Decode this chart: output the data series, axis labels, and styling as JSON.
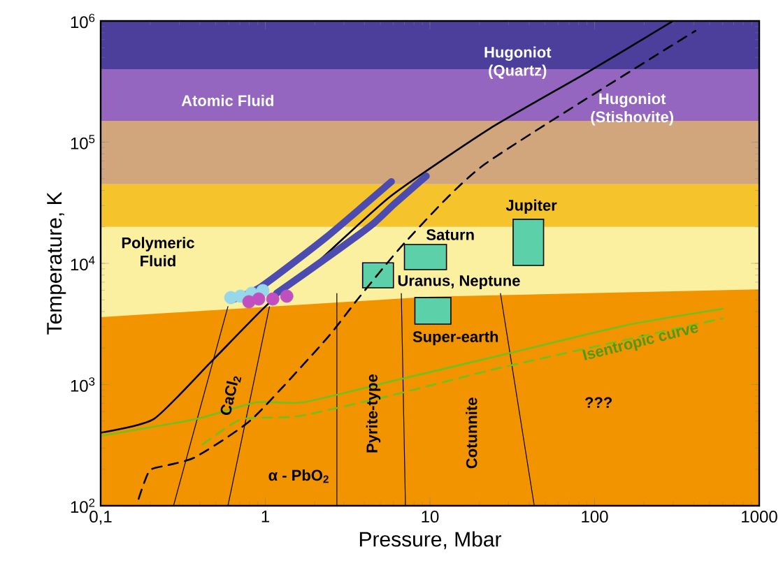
{
  "chart_data": {
    "type": "line",
    "xlabel": "Pressure, Mbar",
    "ylabel": "Temperature, K",
    "log": "xy",
    "grid": false,
    "xlim": [
      0.1,
      1000
    ],
    "ylim": [
      100,
      1000000
    ],
    "xticks": [
      {
        "value": 0.1,
        "label": "0,1"
      },
      1,
      10,
      100,
      1000
    ],
    "yticks": [
      {
        "value": 100,
        "label": "10$^{2}$"
      },
      {
        "value": 1000,
        "label": "10$^{3}$"
      },
      {
        "value": 10000,
        "label": "10$^{4}$"
      },
      {
        "value": 100000,
        "label": "10$^{5}$"
      },
      {
        "value": 1000000,
        "label": "10$^{6}$"
      }
    ],
    "bands": [
      {
        "axis": "y",
        "from": 3000,
        "to": 20000,
        "color": "#fbefa0"
      },
      {
        "axis": "y",
        "from": 20000,
        "to": 45000,
        "color": "#f5c42c"
      },
      {
        "axis": "y",
        "from": 45000,
        "to": 150000,
        "color": "#d2a67c"
      },
      {
        "axis": "y",
        "from": 150000,
        "to": 400000,
        "color": "#9466c0"
      },
      {
        "axis": "y",
        "from": 400000,
        "to": 1000000,
        "color": "#4c3f9c"
      }
    ],
    "series": [
      {
        "type": "area",
        "color": "#f29400",
        "x": [
          0.1,
          10,
          1000
        ],
        "values": [
          3600,
          5300,
          6100
        ]
      },
      {
        "color": "#000000",
        "x": [
          0.277,
          0.593
        ],
        "values": [
          100,
          4400
        ]
      },
      {
        "color": "#000000",
        "x": [
          0.593,
          1.06
        ],
        "values": [
          100,
          4400
        ]
      },
      {
        "color": "#000000",
        "x": [
          2.72,
          2.72
        ],
        "values": [
          100,
          5650
        ]
      },
      {
        "color": "#000000",
        "x": [
          7.1,
          6.7
        ],
        "values": [
          100,
          5650
        ]
      },
      {
        "color": "#000000",
        "x": [
          43,
          26.8
        ],
        "values": [
          100,
          5650
        ]
      },
      {
        "type": "area",
        "color": "#5cd0a8",
        "x": [
          7.0,
          12.6,
          12.6,
          7.0
        ],
        "values": [
          8870,
          8870,
          14300,
          14300
        ]
      },
      {
        "type": "area",
        "color": "#5cd0a8",
        "x": [
          32,
          49,
          49,
          32
        ],
        "values": [
          9600,
          9600,
          23100,
          23100
        ]
      },
      {
        "type": "area",
        "color": "#5cd0a8",
        "x": [
          3.9,
          6.0,
          6.0,
          3.9
        ],
        "values": [
          6280,
          6280,
          10100,
          10100
        ]
      },
      {
        "type": "area",
        "color": "#5cd0a8",
        "x": [
          8.1,
          13.4,
          13.4,
          8.1
        ],
        "values": [
          3150,
          3150,
          5230,
          5230
        ]
      },
      {
        "color": "#70c020",
        "line_style": "solid",
        "x": [
          0.1,
          0.378,
          0.88,
          1.7,
          5.8,
          29.6,
          153,
          600
        ],
        "values": [
          377,
          519,
          713,
          713,
          1060,
          1800,
          3070,
          4220
        ]
      },
      {
        "color": "#70c020",
        "line_style": "dashed",
        "x": [
          0.417,
          0.72,
          1.57,
          5.8,
          29.6,
          600
        ],
        "values": [
          321,
          519,
          547,
          813,
          1420,
          3510
        ]
      },
      {
        "color": "#000000",
        "line_style": "solid",
        "x": [
          0.1,
          0.21,
          0.46,
          1.0,
          2.2,
          5.8,
          23,
          90,
          300
        ],
        "values": [
          400,
          519,
          1500,
          4400,
          11000,
          36000,
          129000,
          375000,
          1000000
        ]
      },
      {
        "color": "#000000",
        "line_style": "dashed",
        "x": [
          0.17,
          0.198,
          0.256,
          0.378,
          0.83,
          2.33,
          3.7,
          7.1,
          21.6,
          410
        ],
        "values": [
          114,
          195,
          216,
          253,
          519,
          2350,
          5200,
          15000,
          66000,
          830000
        ]
      },
      {
        "color": "#4c4cb0",
        "x": [
          0.617,
          0.948,
          2.33,
          5.83
        ],
        "values": [
          4950,
          6450,
          16300,
          47200
        ]
      },
      {
        "color": "#4c4cb0",
        "x": [
          1.17,
          2.67,
          4.53,
          6.07,
          9.5
        ],
        "values": [
          5660,
          12500,
          21300,
          30900,
          52500
        ]
      },
      {
        "type": "scatter",
        "color": "#96d8ea",
        "marker": "circle",
        "x": [
          0.617,
          0.706,
          0.826,
          0.966
        ],
        "values": [
          5220,
          5360,
          5660,
          5960
        ]
      },
      {
        "type": "scatter",
        "color": "#c050c0",
        "marker": "circle",
        "x": [
          0.795,
          0.911,
          1.11,
          1.35
        ],
        "values": [
          4820,
          5080,
          5080,
          5360
        ]
      }
    ],
    "annotations": [
      "Atomic Fluid",
      "Hugoniot (Quartz)",
      "Hugoniot (Stishovite)",
      "Polymeric Fluid",
      "Saturn",
      "Jupiter",
      "Uranus, Neptune",
      "Super-earth",
      "CaCl$_{2}$",
      "α - PbO$_{2}$",
      "Pyrite-type",
      "Cotunnite",
      "???",
      "Isentropic curve"
    ]
  }
}
